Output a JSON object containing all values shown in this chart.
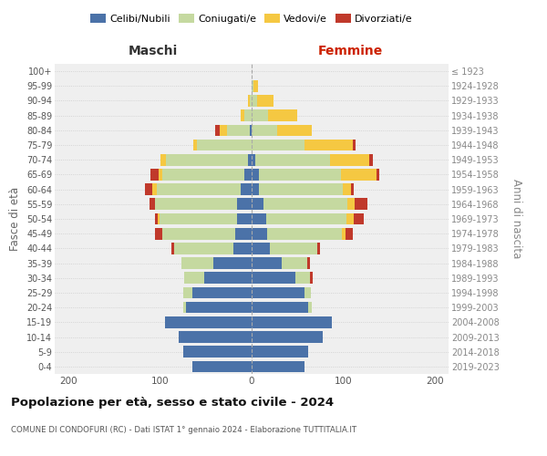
{
  "age_groups": [
    "0-4",
    "5-9",
    "10-14",
    "15-19",
    "20-24",
    "25-29",
    "30-34",
    "35-39",
    "40-44",
    "45-49",
    "50-54",
    "55-59",
    "60-64",
    "65-69",
    "70-74",
    "75-79",
    "80-84",
    "85-89",
    "90-94",
    "95-99",
    "100+"
  ],
  "birth_years": [
    "2019-2023",
    "2014-2018",
    "2009-2013",
    "2004-2008",
    "1999-2003",
    "1994-1998",
    "1989-1993",
    "1984-1988",
    "1979-1983",
    "1974-1978",
    "1969-1973",
    "1964-1968",
    "1959-1963",
    "1954-1958",
    "1949-1953",
    "1944-1948",
    "1939-1943",
    "1934-1938",
    "1929-1933",
    "1924-1928",
    "≤ 1923"
  ],
  "male_celibi": [
    65,
    75,
    80,
    95,
    72,
    65,
    52,
    42,
    20,
    18,
    16,
    16,
    12,
    8,
    4,
    0,
    2,
    0,
    0,
    0,
    0
  ],
  "male_coniugati": [
    0,
    0,
    0,
    0,
    3,
    10,
    22,
    35,
    65,
    80,
    85,
    90,
    92,
    90,
    90,
    60,
    25,
    8,
    2,
    0,
    0
  ],
  "male_vedovi": [
    0,
    0,
    0,
    0,
    0,
    0,
    0,
    0,
    0,
    0,
    2,
    0,
    4,
    4,
    6,
    4,
    8,
    4,
    2,
    0,
    0
  ],
  "male_divorziati": [
    0,
    0,
    0,
    0,
    0,
    0,
    0,
    0,
    3,
    8,
    3,
    5,
    8,
    8,
    0,
    0,
    5,
    0,
    0,
    0,
    0
  ],
  "female_nubili": [
    58,
    62,
    78,
    88,
    62,
    58,
    48,
    33,
    20,
    17,
    16,
    13,
    8,
    8,
    4,
    0,
    0,
    0,
    0,
    0,
    0
  ],
  "female_coniugate": [
    0,
    0,
    0,
    0,
    4,
    7,
    16,
    28,
    52,
    82,
    88,
    92,
    92,
    90,
    82,
    58,
    28,
    18,
    6,
    2,
    0
  ],
  "female_vedove": [
    0,
    0,
    0,
    0,
    0,
    0,
    0,
    0,
    0,
    4,
    7,
    7,
    8,
    38,
    42,
    52,
    38,
    32,
    18,
    5,
    0
  ],
  "female_divorziate": [
    0,
    0,
    0,
    0,
    0,
    0,
    3,
    3,
    3,
    7,
    11,
    14,
    3,
    3,
    4,
    3,
    0,
    0,
    0,
    0,
    0
  ],
  "color_celibi": "#4b72a8",
  "color_coniugati": "#c5d9a0",
  "color_vedovi": "#f5c842",
  "color_divorziati": "#c0392b",
  "legend_labels": [
    "Celibi/Nubili",
    "Coniugati/e",
    "Vedovi/e",
    "Divorziati/e"
  ],
  "title": "Popolazione per età, sesso e stato civile - 2024",
  "subtitle": "COMUNE DI CONDOFURI (RC) - Dati ISTAT 1° gennaio 2024 - Elaborazione TUTTITALIA.IT",
  "maschi_label": "Maschi",
  "femmine_label": "Femmine",
  "ylabel_left": "Fasce di età",
  "ylabel_right": "Anni di nascita",
  "xlim": 215
}
